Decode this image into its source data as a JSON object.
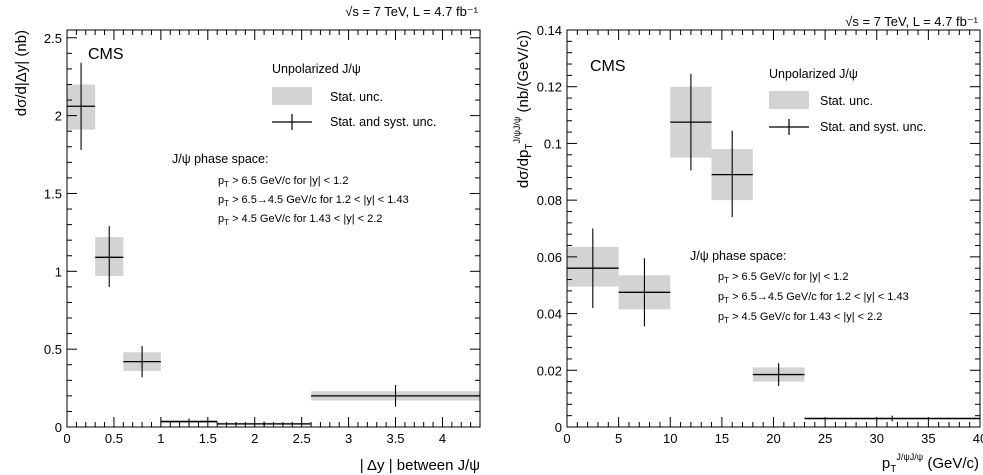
{
  "chart_data": [
    {
      "type": "bar",
      "title": "",
      "experiment_label": "CMS",
      "energy_label": "√s = 7 TeV, L = 4.7 fb⁻¹",
      "xlabel": "| Δy | between J/ψ",
      "ylabel": "dσ/d|Δy| (nb)",
      "xlim": [
        0,
        4.4
      ],
      "ylim": [
        0,
        2.55
      ],
      "x_ticks": [
        "0",
        "0.5",
        "1",
        "1.5",
        "2",
        "2.5",
        "3",
        "3.5",
        "4"
      ],
      "y_ticks": [
        "0",
        "0.5",
        "1",
        "1.5",
        "2",
        "2.5"
      ],
      "legend": {
        "title": "Unpolarized J/ψ",
        "entries": [
          "Stat. unc.",
          "Stat. and syst. unc."
        ],
        "placement": "top-right"
      },
      "annotation": {
        "title": "J/ψ phase space:",
        "lines": [
          "p_T > 6.5 GeV/c for |y| < 1.2",
          "p_T > 6.5→4.5 GeV/c for 1.2 < |y| < 1.43",
          "p_T > 4.5 GeV/c for 1.43 < |y| < 2.2"
        ]
      },
      "points": [
        {
          "x_low": 0.0,
          "x_high": 0.3,
          "x": 0.15,
          "y": 2.06,
          "stat_low": 1.91,
          "stat_high": 2.2,
          "tot_low": 1.78,
          "tot_high": 2.34
        },
        {
          "x_low": 0.3,
          "x_high": 0.6,
          "x": 0.45,
          "y": 1.09,
          "stat_low": 0.97,
          "stat_high": 1.22,
          "tot_low": 0.9,
          "tot_high": 1.29
        },
        {
          "x_low": 0.6,
          "x_high": 1.0,
          "x": 0.8,
          "y": 0.42,
          "stat_low": 0.36,
          "stat_high": 0.48,
          "tot_low": 0.32,
          "tot_high": 0.52
        },
        {
          "x_low": 1.0,
          "x_high": 1.6,
          "x": 1.3,
          "y": 0.035,
          "stat_low": 0.025,
          "stat_high": 0.045,
          "tot_low": 0.015,
          "tot_high": 0.055
        },
        {
          "x_low": 1.6,
          "x_high": 2.6,
          "x": 2.1,
          "y": 0.02,
          "stat_low": 0.012,
          "stat_high": 0.028,
          "tot_low": 0.005,
          "tot_high": 0.035
        },
        {
          "x_low": 2.6,
          "x_high": 4.4,
          "x": 3.5,
          "y": 0.2,
          "stat_low": 0.17,
          "stat_high": 0.23,
          "tot_low": 0.13,
          "tot_high": 0.27
        }
      ]
    },
    {
      "type": "bar",
      "title": "",
      "experiment_label": "CMS",
      "energy_label": "√s = 7 TeV, L = 4.7 fb⁻¹",
      "xlabel": "p_T^{J/ψJ/ψ} (GeV/c)",
      "ylabel": "dσ/dp_T^{J/ψJ/ψ} (nb/(GeV/c))",
      "xlim": [
        0,
        40
      ],
      "ylim": [
        0,
        0.14
      ],
      "x_ticks": [
        "0",
        "5",
        "10",
        "15",
        "20",
        "25",
        "30",
        "35",
        "40"
      ],
      "y_ticks": [
        "0",
        "0.02",
        "0.04",
        "0.06",
        "0.08",
        "0.1",
        "0.12",
        "0.14"
      ],
      "legend": {
        "title": "Unpolarized J/ψ",
        "entries": [
          "Stat. unc.",
          "Stat. and syst. unc."
        ],
        "placement": "top-right"
      },
      "annotation": {
        "title": "J/ψ phase space:",
        "lines": [
          "p_T > 6.5 GeV/c for |y| < 1.2",
          "p_T > 6.5→4.5 GeV/c for 1.2 < |y| < 1.43",
          "p_T > 4.5 GeV/c for 1.43 < |y| < 2.2"
        ]
      },
      "points": [
        {
          "x_low": 0,
          "x_high": 5,
          "x": 2.5,
          "y": 0.056,
          "stat_low": 0.0495,
          "stat_high": 0.0635,
          "tot_low": 0.042,
          "tot_high": 0.07
        },
        {
          "x_low": 5,
          "x_high": 10,
          "x": 7.5,
          "y": 0.0475,
          "stat_low": 0.0415,
          "stat_high": 0.0535,
          "tot_low": 0.0355,
          "tot_high": 0.0595
        },
        {
          "x_low": 10,
          "x_high": 14,
          "x": 12,
          "y": 0.1075,
          "stat_low": 0.095,
          "stat_high": 0.12,
          "tot_low": 0.0905,
          "tot_high": 0.1245
        },
        {
          "x_low": 14,
          "x_high": 18,
          "x": 16,
          "y": 0.089,
          "stat_low": 0.08,
          "stat_high": 0.098,
          "tot_low": 0.074,
          "tot_high": 0.1045
        },
        {
          "x_low": 18,
          "x_high": 23,
          "x": 20.5,
          "y": 0.0185,
          "stat_low": 0.016,
          "stat_high": 0.021,
          "tot_low": 0.0145,
          "tot_high": 0.0225
        },
        {
          "x_low": 23,
          "x_high": 40,
          "x": 31.5,
          "y": 0.003,
          "stat_low": 0.0025,
          "stat_high": 0.0035,
          "tot_low": 0.002,
          "tot_high": 0.004
        }
      ]
    }
  ]
}
